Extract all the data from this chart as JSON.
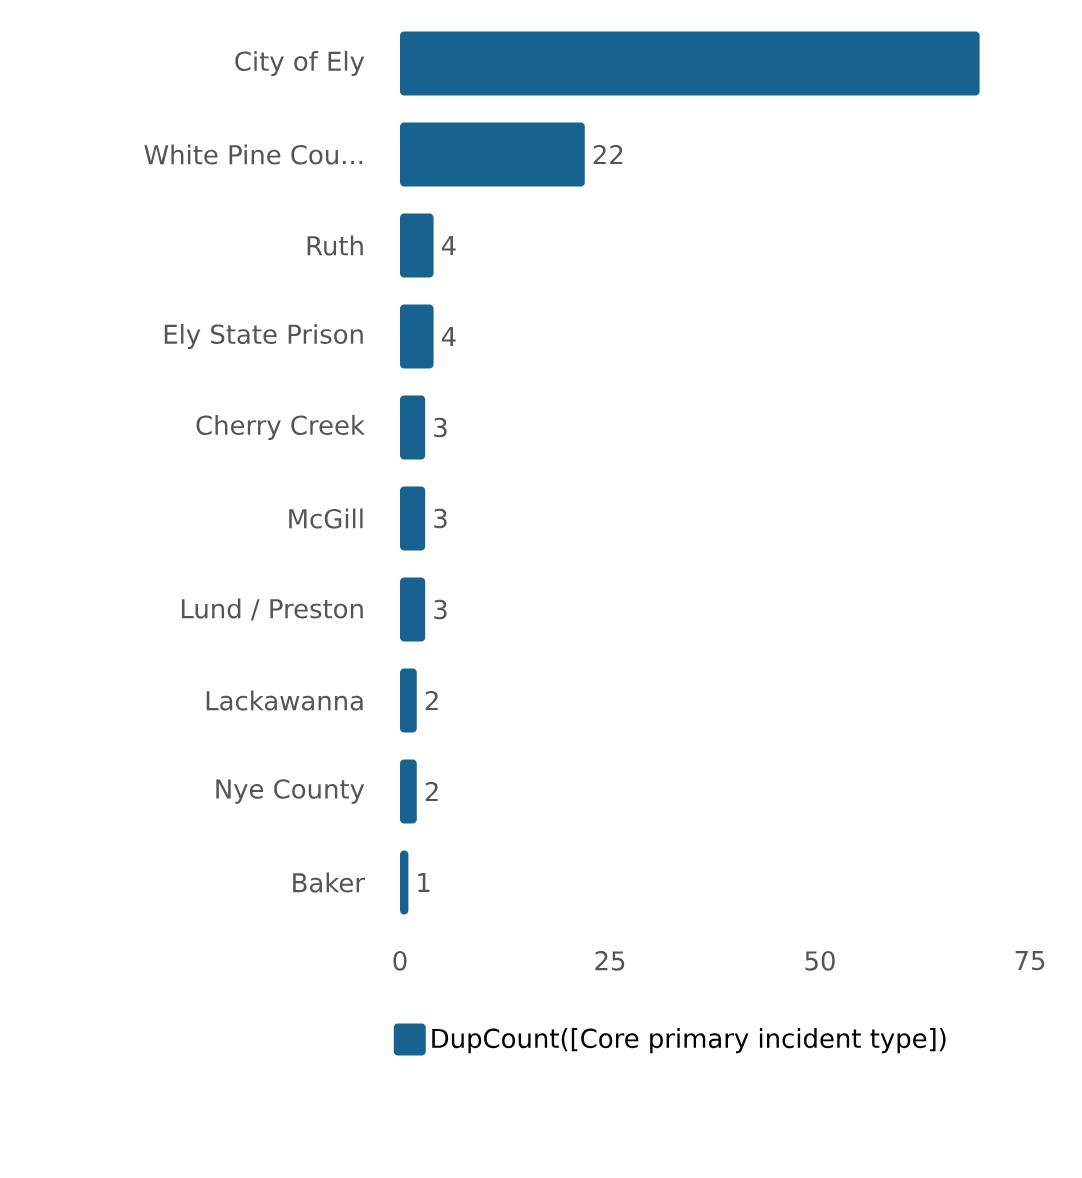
{
  "chart_data": {
    "type": "bar",
    "orientation": "horizontal",
    "categories": [
      "City of Ely",
      "White Pine Cou...",
      "Ruth",
      "Ely State Prison",
      "Cherry Creek",
      "McGill",
      "Lund / Preston",
      "Lackawanna",
      "Nye County",
      "Baker"
    ],
    "series": [
      {
        "name": "DupCount([Core primary incident type])",
        "color": "#17628f",
        "values": [
          69,
          22,
          4,
          4,
          3,
          3,
          3,
          2,
          2,
          1
        ],
        "value_labels": [
          null,
          "22",
          "4",
          "4",
          "3",
          "3",
          "3",
          "2",
          "2",
          "1"
        ]
      }
    ],
    "xlim": [
      0,
      75
    ],
    "xticks": [
      0,
      25,
      50,
      75
    ],
    "grid": false,
    "legend": "bottom left"
  }
}
